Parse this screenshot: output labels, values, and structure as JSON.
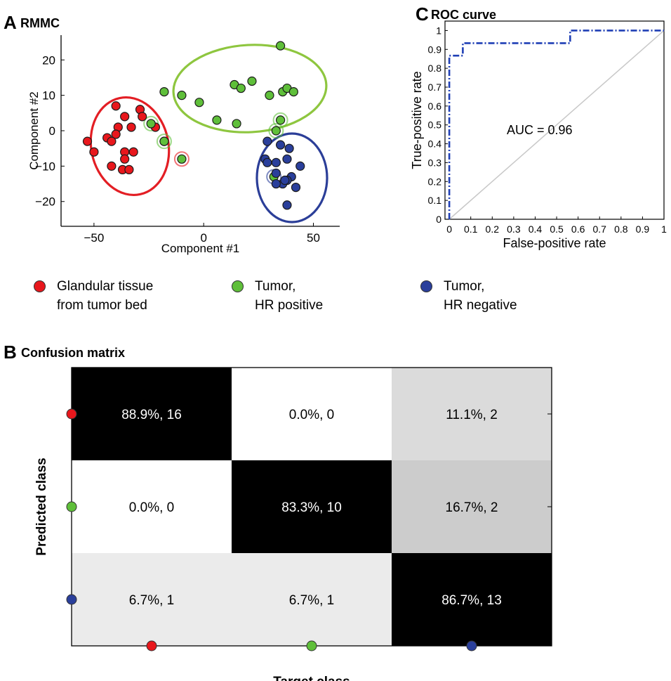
{
  "colors": {
    "red": "#e8171c",
    "green": "#5fbf3a",
    "blue": "#2a3f9b",
    "ellipse_red": "#e31e24",
    "ellipse_green": "#8ec63f",
    "ellipse_blue": "#2b3e98",
    "roc_line": "#1f3fb5",
    "diag": "#c8c8c8"
  },
  "panels": {
    "a": {
      "letter": "A",
      "title": "RMMC"
    },
    "b": {
      "letter": "B",
      "title": "Confusion matrix"
    },
    "c": {
      "letter": "C",
      "title": "ROC curve"
    }
  },
  "legend": [
    {
      "color": "red",
      "line1": "Glandular tissue",
      "line2": "from tumor bed"
    },
    {
      "color": "green",
      "line1": "Tumor,",
      "line2": "HR positive"
    },
    {
      "color": "blue",
      "line1": "Tumor,",
      "line2": "HR negative"
    }
  ],
  "chart_data": [
    {
      "type": "scatter",
      "panel": "A",
      "title": "RMMC",
      "xlabel": "Component #1",
      "ylabel": "Component #2",
      "xlim": [
        -65,
        62
      ],
      "ylim": [
        -27,
        27
      ],
      "xticks": [
        -50,
        0,
        50
      ],
      "xtick_labels": [
        "−50",
        "0",
        "50"
      ],
      "yticks": [
        20,
        10,
        0,
        -10,
        -20
      ],
      "ytick_labels": [
        "20",
        "10",
        "0",
        "−10",
        "−20"
      ],
      "series": [
        {
          "class": "red",
          "points": [
            [
              -40,
              7
            ],
            [
              -36,
              4
            ],
            [
              -29,
              6
            ],
            [
              -39,
              1
            ],
            [
              -33,
              1
            ],
            [
              -28,
              4
            ],
            [
              -44,
              -2
            ],
            [
              -40,
              -1
            ],
            [
              -53,
              -3
            ],
            [
              -50,
              -6
            ],
            [
              -42,
              -3
            ],
            [
              -36,
              -6
            ],
            [
              -32,
              -6
            ],
            [
              -42,
              -10
            ],
            [
              -36,
              -8
            ],
            [
              -37,
              -11
            ],
            [
              -34,
              -11
            ],
            [
              -22,
              1
            ],
            [
              -18,
              -3
            ]
          ]
        },
        {
          "class": "green",
          "points": [
            [
              35,
              24
            ],
            [
              -18,
              11
            ],
            [
              -10,
              10
            ],
            [
              -2,
              8
            ],
            [
              14,
              13
            ],
            [
              17,
              12
            ],
            [
              22,
              14
            ],
            [
              30,
              10
            ],
            [
              36,
              11
            ],
            [
              38,
              12
            ],
            [
              41,
              11
            ],
            [
              6,
              3
            ],
            [
              15,
              2
            ],
            [
              35,
              3
            ],
            [
              33,
              0
            ],
            [
              -24,
              2
            ],
            [
              -18,
              -3
            ],
            [
              -10,
              -8
            ],
            [
              32,
              -13
            ]
          ]
        },
        {
          "class": "blue",
          "points": [
            [
              29,
              -3
            ],
            [
              35,
              -4
            ],
            [
              39,
              -5
            ],
            [
              28,
              -8
            ],
            [
              29,
              -9
            ],
            [
              33,
              -9
            ],
            [
              38,
              -8
            ],
            [
              33,
              -12
            ],
            [
              40,
              -13
            ],
            [
              38,
              -14
            ],
            [
              36,
              -15
            ],
            [
              33,
              -15
            ],
            [
              37,
              -14
            ],
            [
              44,
              -10
            ],
            [
              42,
              -16
            ],
            [
              38,
              -21
            ]
          ]
        }
      ],
      "misclassified": [
        {
          "x": -24,
          "y": 2,
          "ring": "green"
        },
        {
          "x": -18,
          "y": -3,
          "ring": "green"
        },
        {
          "x": -10,
          "y": -8,
          "ring": "red"
        },
        {
          "x": 35,
          "y": 3,
          "ring": "green"
        },
        {
          "x": 33,
          "y": 0,
          "ring": "green"
        },
        {
          "x": 32,
          "y": -13,
          "ring": "blue"
        }
      ]
    },
    {
      "type": "heatmap",
      "panel": "B",
      "title": "Confusion matrix",
      "xlabel": "Target class",
      "ylabel": "Predicted class",
      "row_markers": [
        "red",
        "green",
        "blue"
      ],
      "col_markers": [
        "red",
        "green",
        "blue"
      ],
      "cells": [
        [
          {
            "label": "88.9%, 16",
            "shade": 0.0
          },
          {
            "label": "0.0%, 0",
            "shade": 1.0
          },
          {
            "label": "11.1%, 2",
            "shade": 0.86
          }
        ],
        [
          {
            "label": "0.0%, 0",
            "shade": 1.0
          },
          {
            "label": "83.3%, 10",
            "shade": 0.0
          },
          {
            "label": "16.7%, 2",
            "shade": 0.8
          }
        ],
        [
          {
            "label": "6.7%, 1",
            "shade": 0.92
          },
          {
            "label": "6.7%, 1",
            "shade": 0.92
          },
          {
            "label": "86.7%, 13",
            "shade": 0.0
          }
        ]
      ]
    },
    {
      "type": "line",
      "panel": "C",
      "title": "ROC curve",
      "xlabel": "False-positive rate",
      "ylabel": "True-positive rate",
      "xlim": [
        -0.02,
        1.0
      ],
      "ylim": [
        0,
        1.05
      ],
      "ticks": [
        0,
        0.1,
        0.2,
        0.3,
        0.4,
        0.5,
        0.6,
        0.7,
        0.8,
        0.9,
        1
      ],
      "tick_labels": [
        "0",
        "0.1",
        "0.2",
        "0.3",
        "0.4",
        "0.5",
        "0.6",
        "0.7",
        "0.8",
        "0.9",
        "1"
      ],
      "annotation": "AUC = 0.96",
      "series": [
        {
          "points": [
            [
              0,
              0
            ],
            [
              0,
              0.867
            ],
            [
              0.063,
              0.867
            ],
            [
              0.063,
              0.933
            ],
            [
              0.563,
              0.933
            ],
            [
              0.563,
              1
            ],
            [
              1,
              1
            ]
          ]
        }
      ],
      "diagonal": [
        [
          0,
          0
        ],
        [
          1,
          1
        ]
      ]
    }
  ]
}
